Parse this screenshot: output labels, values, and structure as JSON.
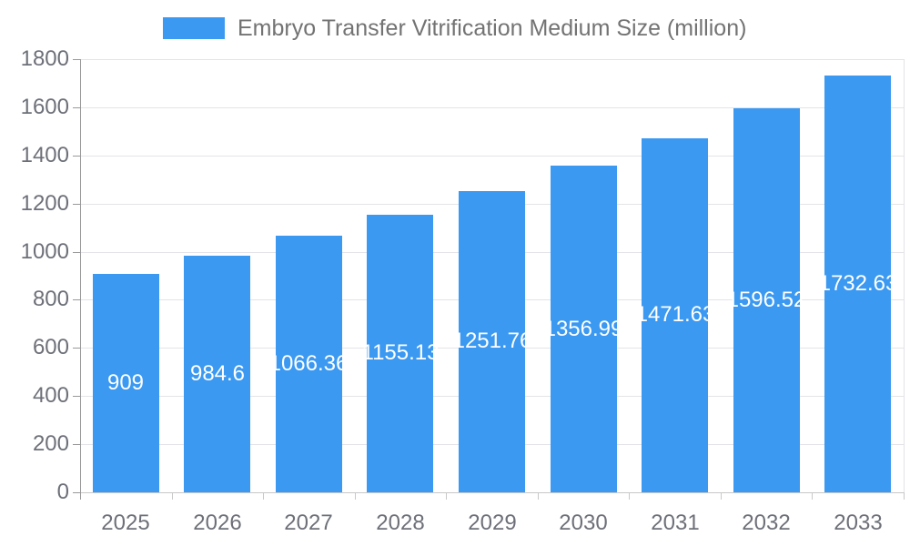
{
  "legend": {
    "label": "Embryo Transfer Vitrification Medium Size (million)"
  },
  "colors": {
    "bar": "#3B99F1",
    "bar_label_text": "#ffffff",
    "axis_label_text": "#6E7079",
    "legend_text": "#737373",
    "grid_line": "#E4E4E8",
    "x_axis_line": "#C8C8C8",
    "y_axis_line": "#999999"
  },
  "chart_data": {
    "type": "bar",
    "title": "Embryo Transfer Vitrification Medium Size (million)",
    "categories": [
      "2025",
      "2026",
      "2027",
      "2028",
      "2029",
      "2030",
      "2031",
      "2032",
      "2033"
    ],
    "series": [
      {
        "name": "Embryo Transfer Vitrification Medium Size (million)",
        "values": [
          909,
          984.6,
          1066.36,
          1155.13,
          1251.76,
          1356.99,
          1471.63,
          1596.52,
          1732.63
        ],
        "value_labels": [
          "909",
          "984.6",
          "1066.36",
          "1155.13",
          "1251.76",
          "1356.99",
          "1471.63",
          "1596.52",
          "1732.63"
        ]
      }
    ],
    "xlabel": "",
    "ylabel": "",
    "ylim": [
      0,
      1800
    ],
    "ytick_step": 200,
    "ytick_labels": [
      "0",
      "200",
      "400",
      "600",
      "800",
      "1000",
      "1200",
      "1400",
      "1600",
      "1800"
    ],
    "grid": true,
    "legend_position": "top",
    "bar_labels_position": "inside-middle"
  }
}
